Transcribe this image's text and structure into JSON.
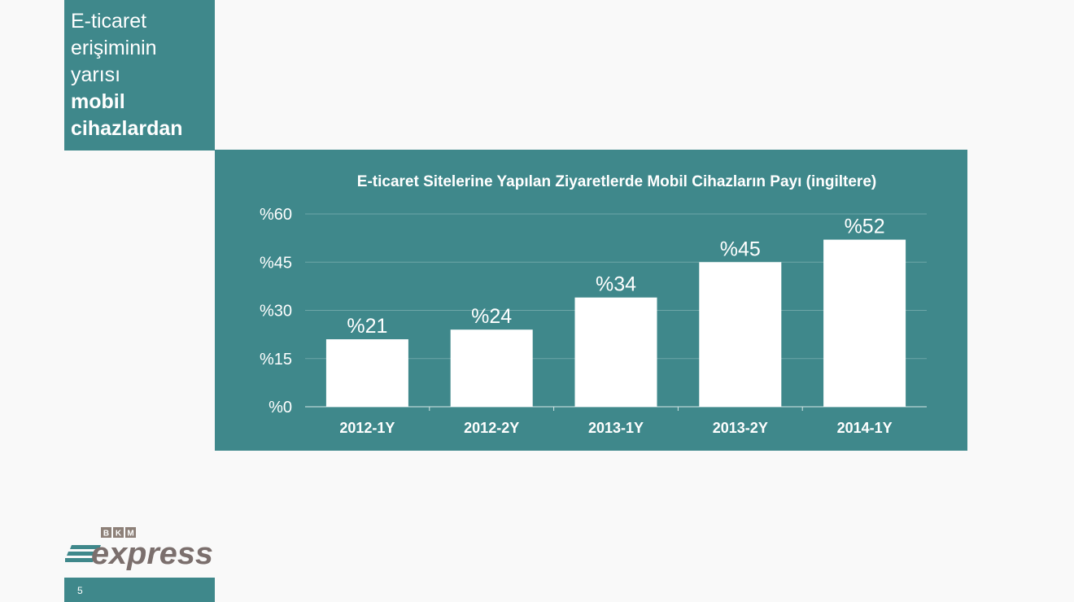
{
  "slide": {
    "title_lines": [
      "E-ticaret",
      "erişiminin",
      "yarısı"
    ],
    "title_bold_lines": [
      "mobil",
      "cihazlardan"
    ],
    "page_number": "5"
  },
  "logo": {
    "top_text": "BKM",
    "main_text": "express",
    "colors": {
      "brand_teal": "#3f888b",
      "express_gray": "#7b6f6d",
      "bkm_box": "#8d8078"
    }
  },
  "colors": {
    "panel": "#3f888b",
    "bar": "#ffffff",
    "text": "#ffffff",
    "page_bg": "#f9f9f9"
  },
  "chart_data": {
    "type": "bar",
    "title": "E-ticaret Sitelerine Yapılan Ziyaretlerde Mobil Cihazların Payı (ingiltere)",
    "categories": [
      "2012-1Y",
      "2012-2Y",
      "2013-1Y",
      "2013-2Y",
      "2014-1Y"
    ],
    "values": [
      21,
      24,
      34,
      45,
      52
    ],
    "value_labels": [
      "%21",
      "%24",
      "%34",
      "%45",
      "%52"
    ],
    "yticks": [
      0,
      15,
      30,
      45,
      60
    ],
    "ytick_labels": [
      "%0",
      "%15",
      "%30",
      "%45",
      "%60"
    ],
    "ylim": [
      0,
      60
    ],
    "grid": true,
    "legend": "none"
  }
}
